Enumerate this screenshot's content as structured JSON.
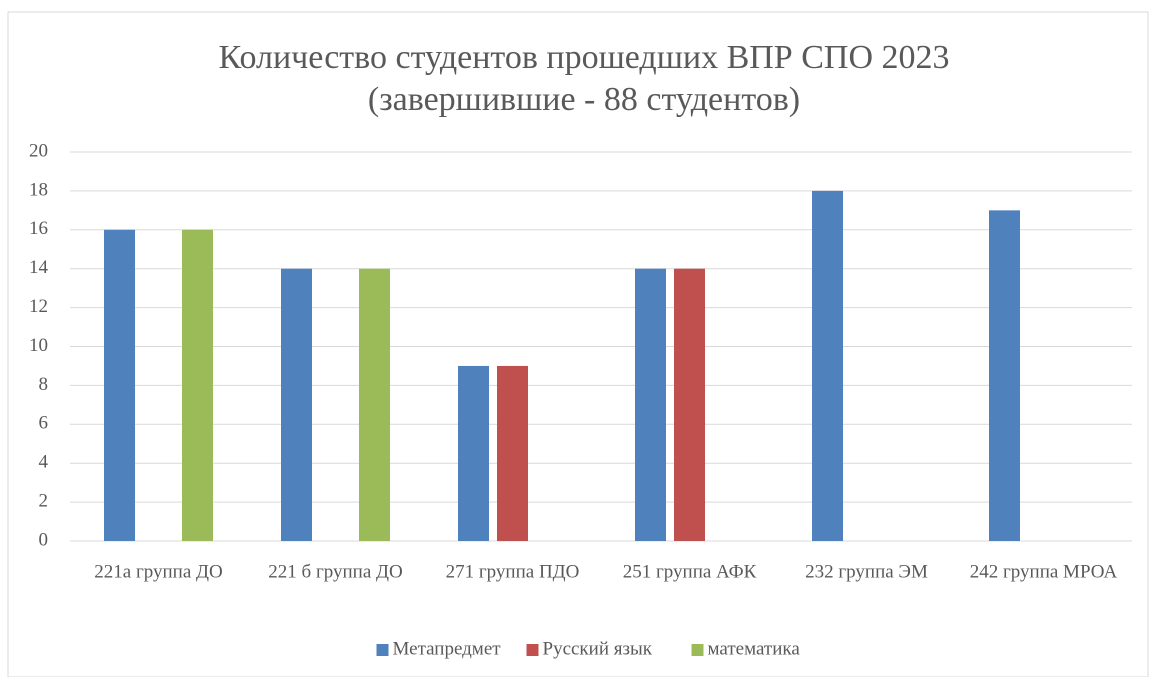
{
  "chart_data": {
    "type": "bar",
    "title": [
      "Количество студентов прошедших ВПР СПО 2023",
      "(завершившие - 88 студентов)"
    ],
    "categories": [
      "221а группа ДО",
      "221 б группа ДО",
      "271 группа ПДО",
      "251 группа АФК",
      "232 группа ЭМ",
      "242 группа МРОА"
    ],
    "series": [
      {
        "name": "Метапредмет",
        "color": "#4f81bd",
        "values": [
          16,
          14,
          9,
          14,
          18,
          17
        ]
      },
      {
        "name": "Русский язык",
        "color": "#c0504d",
        "values": [
          null,
          null,
          9,
          14,
          null,
          null
        ]
      },
      {
        "name": "математика",
        "color": "#9bbb59",
        "values": [
          16,
          14,
          null,
          null,
          null,
          null
        ]
      }
    ],
    "ylim": [
      0,
      20
    ],
    "yticks": [
      0,
      2,
      4,
      6,
      8,
      10,
      12,
      14,
      16,
      18,
      20
    ],
    "grid": true,
    "legend": "bottom"
  }
}
